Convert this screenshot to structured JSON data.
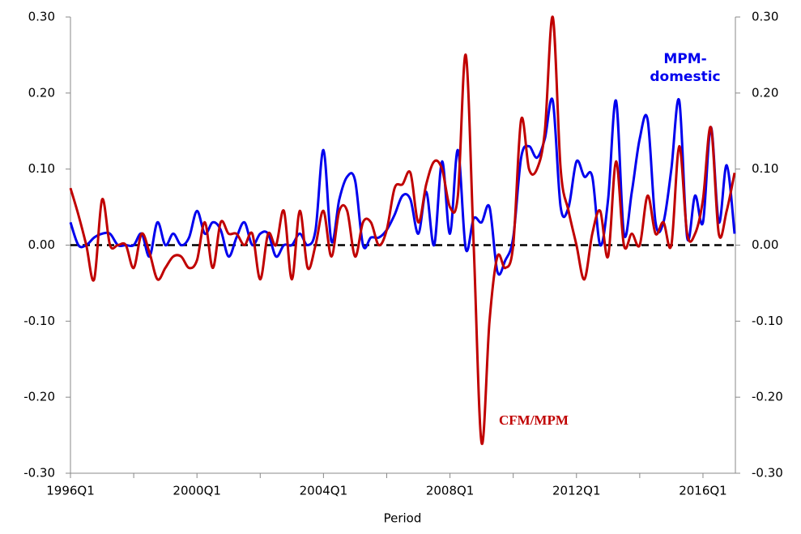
{
  "chart_data": {
    "type": "line",
    "x_label": "Period",
    "categories": [
      "1996Q1",
      null,
      null,
      null,
      null,
      null,
      null,
      null,
      null,
      null,
      null,
      null,
      null,
      null,
      null,
      null,
      "2000Q1",
      null,
      null,
      null,
      null,
      null,
      null,
      null,
      null,
      null,
      null,
      null,
      null,
      null,
      null,
      null,
      "2004Q1",
      null,
      null,
      null,
      null,
      null,
      null,
      null,
      null,
      null,
      null,
      null,
      null,
      null,
      null,
      null,
      "2008Q1",
      null,
      null,
      null,
      null,
      null,
      null,
      null,
      null,
      null,
      null,
      null,
      null,
      null,
      null,
      null,
      "2012Q1",
      null,
      null,
      null,
      null,
      null,
      null,
      null,
      null,
      null,
      null,
      null,
      null,
      null,
      null,
      null,
      "2016Q1",
      null,
      null,
      null,
      null
    ],
    "series": [
      {
        "name": "MPM-domestic",
        "color": "#0000ee",
        "values": [
          0.03,
          0.0,
          0.0,
          0.01,
          0.015,
          0.015,
          0.0,
          0.0,
          0.0,
          0.015,
          -0.015,
          0.03,
          0.0,
          0.015,
          0.0,
          0.01,
          0.045,
          0.015,
          0.03,
          0.02,
          -0.015,
          0.01,
          0.03,
          0.0,
          0.015,
          0.015,
          -0.015,
          0.0,
          0.0,
          0.015,
          0.0,
          0.02,
          0.125,
          0.005,
          0.06,
          0.09,
          0.085,
          0.0,
          0.01,
          0.01,
          0.02,
          0.04,
          0.065,
          0.06,
          0.015,
          0.07,
          0.0,
          0.11,
          0.015,
          0.125,
          -0.005,
          0.035,
          0.03,
          0.05,
          -0.035,
          -0.02,
          0.01,
          0.115,
          0.13,
          0.115,
          0.14,
          0.19,
          0.05,
          0.05,
          0.11,
          0.09,
          0.09,
          0.0,
          0.06,
          0.19,
          0.015,
          0.07,
          0.14,
          0.165,
          0.03,
          0.03,
          0.1,
          0.19,
          0.01,
          0.065,
          0.03,
          0.155,
          0.03,
          0.105,
          0.015
        ]
      },
      {
        "name": "CFM/MPM",
        "color": "#c00000",
        "values": [
          0.075,
          0.04,
          0.0,
          -0.045,
          0.06,
          0.0,
          0.0,
          0.0,
          -0.03,
          0.015,
          -0.01,
          -0.045,
          -0.03,
          -0.015,
          -0.015,
          -0.03,
          -0.02,
          0.03,
          -0.03,
          0.03,
          0.015,
          0.015,
          0.0,
          0.015,
          -0.045,
          0.015,
          0.0,
          0.045,
          -0.045,
          0.045,
          -0.03,
          0.0,
          0.045,
          -0.015,
          0.045,
          0.045,
          -0.015,
          0.03,
          0.03,
          0.0,
          0.02,
          0.075,
          0.08,
          0.095,
          0.03,
          0.08,
          0.11,
          0.1,
          0.05,
          0.065,
          0.25,
          0.0,
          -0.26,
          -0.1,
          -0.015,
          -0.03,
          0.0,
          0.165,
          0.1,
          0.1,
          0.15,
          0.3,
          0.1,
          0.045,
          0.0,
          -0.045,
          0.015,
          0.045,
          -0.015,
          0.11,
          0.0,
          0.015,
          0.0,
          0.065,
          0.015,
          0.03,
          0.0,
          0.13,
          0.015,
          0.015,
          0.06,
          0.155,
          0.015,
          0.045,
          0.095
        ]
      }
    ],
    "reference_line": 0,
    "ylim": [
      -0.3,
      0.3
    ],
    "yticks": [
      {
        "value": -0.3,
        "label": "-0.30"
      },
      {
        "value": -0.2,
        "label": "-0.20"
      },
      {
        "value": -0.1,
        "label": "-0.10"
      },
      {
        "value": 0,
        "label": "0.00"
      },
      {
        "value": 0.1,
        "label": "0.10"
      },
      {
        "value": 0.2,
        "label": "0.20"
      },
      {
        "value": 0.3,
        "label": "0.30"
      }
    ],
    "y2lim": [
      -0.3,
      0.3
    ],
    "y2ticks": [
      {
        "value": -0.3,
        "label": "-0.30"
      },
      {
        "value": -0.2,
        "label": "-0.20"
      },
      {
        "value": -0.1,
        "label": "-0.10"
      },
      {
        "value": 0,
        "label": "0.00"
      },
      {
        "value": 0.1,
        "label": "0.10"
      },
      {
        "value": 0.2,
        "label": "0.20"
      },
      {
        "value": 0.3,
        "label": "0.30"
      }
    ],
    "grid": false
  }
}
